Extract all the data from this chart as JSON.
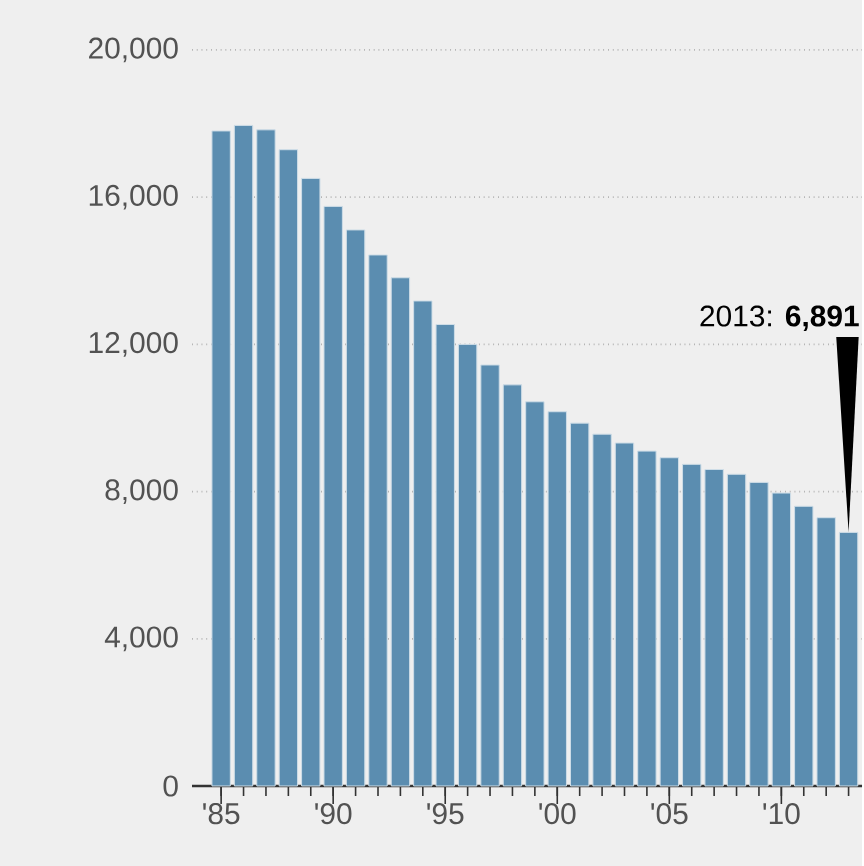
{
  "chart_data": {
    "type": "bar",
    "categories": [
      "'85",
      null,
      null,
      null,
      null,
      "'90",
      null,
      null,
      null,
      null,
      "'95",
      null,
      null,
      null,
      null,
      "'00",
      null,
      null,
      null,
      null,
      "'05",
      null,
      null,
      null,
      null,
      "'10",
      null,
      null,
      null
    ],
    "values": [
      17800,
      17950,
      17830,
      17290,
      16510,
      15750,
      15110,
      14430,
      13810,
      13180,
      12540,
      12000,
      11440,
      10900,
      10440,
      10170,
      9860,
      9560,
      9320,
      9100,
      8920,
      8740,
      8600,
      8470,
      8250,
      7960,
      7600,
      7290,
      6891
    ],
    "color": "#5b8db0",
    "ylim": [
      0,
      20000
    ],
    "yticks": [
      {
        "value": 0,
        "label": "0"
      },
      {
        "value": 4000,
        "label": "4,000"
      },
      {
        "value": 8000,
        "label": "8,000"
      },
      {
        "value": 12000,
        "label": "12,000"
      },
      {
        "value": 16000,
        "label": "16,000"
      },
      {
        "value": 20000,
        "label": "20,000"
      }
    ],
    "grid": "y",
    "annotations": [
      "2013: **6,891**"
    ]
  }
}
